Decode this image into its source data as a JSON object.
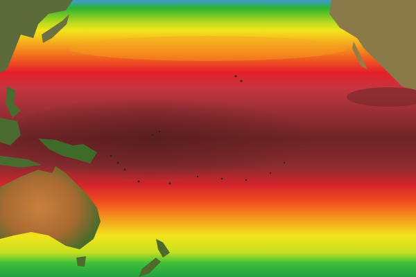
{
  "map": {
    "palette": {
      "cold": "#3f7fd0",
      "green": "#2fb52f",
      "yellow": "#f2e41c",
      "orange": "#f58a1e",
      "red": "#e5202a",
      "warm_red": "#c5353f",
      "maroon": "#7a2a2c",
      "land": "#7a6a3a",
      "land_green": "#3f6b2a",
      "desert": "#b8743a"
    },
    "features": [
      "asia",
      "north-america",
      "australia",
      "new-guinea",
      "new-zealand",
      "tasmania",
      "pacific-islands"
    ]
  }
}
